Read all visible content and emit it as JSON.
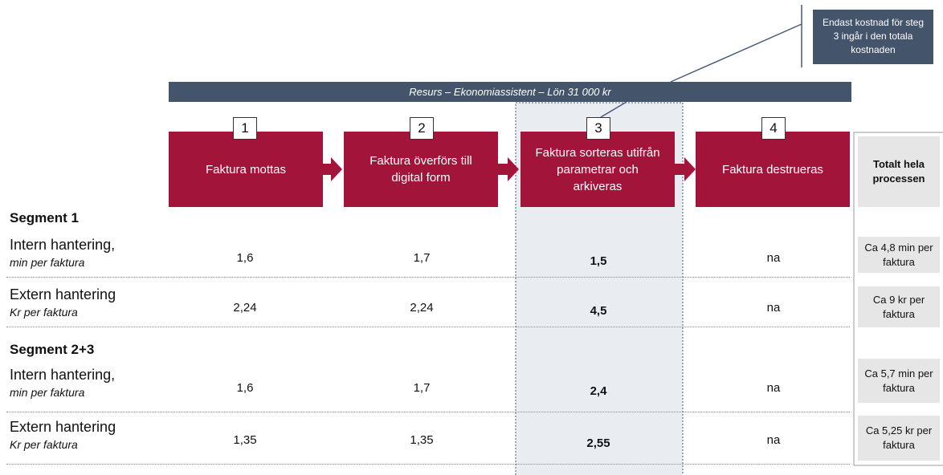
{
  "callout": "Endast kostnad för steg 3 ingår i den totala kostnaden",
  "banner": "Resurs – Ekonomiassistent – Lön 31 000 kr",
  "steps": [
    {
      "number": "1",
      "label": "Faktura mottas"
    },
    {
      "number": "2",
      "label": "Faktura överförs till digital form"
    },
    {
      "number": "3",
      "label": "Faktura sorteras utifrån parametrar och arkiveras"
    },
    {
      "number": "4",
      "label": "Faktura destrueras"
    }
  ],
  "total_header": "Totalt hela processen",
  "segments": [
    {
      "title": "Segment 1",
      "rows": [
        {
          "label": "Intern hantering,",
          "unit": "min per faktura",
          "values": [
            "1,6",
            "1,7",
            "1,5",
            "na"
          ],
          "total": "Ca 4,8 min per faktura"
        },
        {
          "label": "Extern hantering",
          "unit": "Kr per faktura",
          "values": [
            "2,24",
            "2,24",
            "4,5",
            "na"
          ],
          "total": "Ca 9 kr per faktura"
        }
      ]
    },
    {
      "title": "Segment 2+3",
      "rows": [
        {
          "label": "Intern hantering,",
          "unit": "min per faktura",
          "values": [
            "1,6",
            "1,7",
            "2,4",
            "na"
          ],
          "total": "Ca 5,7 min per faktura"
        },
        {
          "label": "Extern hantering",
          "unit": "Kr per faktura",
          "values": [
            "1,35",
            "1,35",
            "2,55",
            "na"
          ],
          "total": "Ca 5,25 kr per faktura"
        }
      ]
    }
  ]
}
